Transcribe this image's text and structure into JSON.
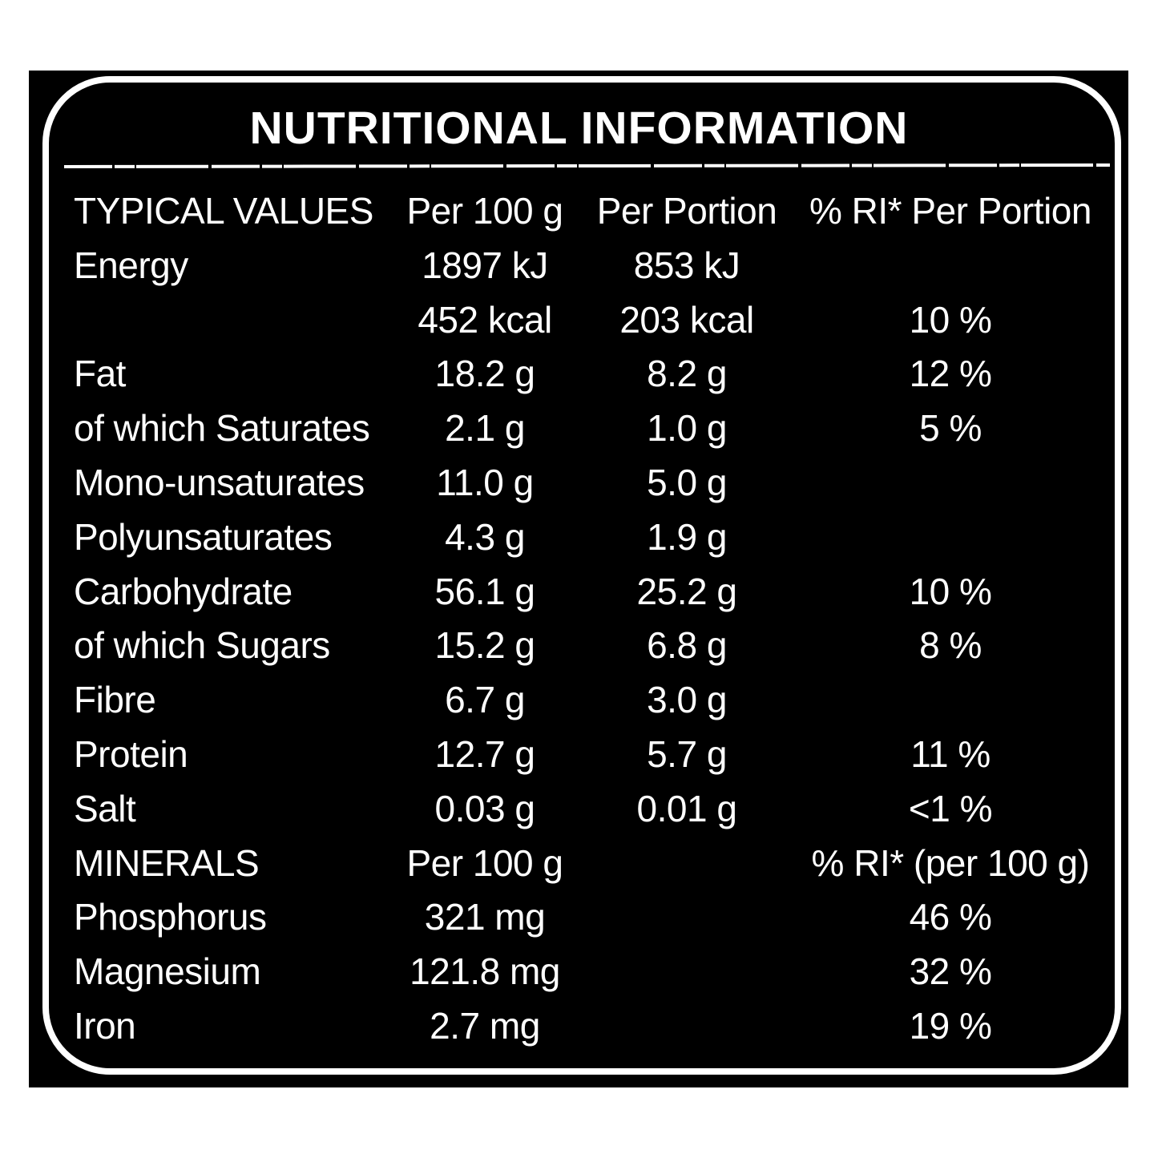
{
  "title": "NUTRITIONAL INFORMATION",
  "table": {
    "rows": [
      [
        "TYPICAL VALUES",
        "Per 100 g",
        "Per Portion",
        "% RI* Per Portion"
      ],
      [
        "Energy",
        "1897 kJ",
        "853 kJ",
        null
      ],
      [
        null,
        "452 kcal",
        "203 kcal",
        "10 %"
      ],
      [
        "Fat",
        "18.2 g",
        "8.2 g",
        "12 %"
      ],
      [
        "of which Saturates",
        "2.1 g",
        "1.0 g",
        "5 %"
      ],
      [
        "Mono-unsaturates",
        "11.0 g",
        "5.0 g",
        null
      ],
      [
        "Polyunsaturates",
        "4.3 g",
        "1.9 g",
        null
      ],
      [
        "Carbohydrate",
        "56.1 g",
        "25.2 g",
        "10 %"
      ],
      [
        "of which Sugars",
        "15.2 g",
        "6.8 g",
        "8 %"
      ],
      [
        "Fibre",
        "6.7 g",
        "3.0 g",
        null
      ],
      [
        "Protein",
        "12.7 g",
        "5.7 g",
        "11 %"
      ],
      [
        "Salt",
        "0.03 g",
        "0.01 g",
        "<1 %"
      ],
      [
        "MINERALS",
        "Per 100 g",
        null,
        "% RI* (per 100 g)"
      ],
      [
        "Phosphorus",
        "321 mg",
        null,
        "46 %"
      ],
      [
        "Magnesium",
        "121.8 mg",
        null,
        "32 %"
      ],
      [
        "Iron",
        "2.7 mg",
        null,
        "19 %"
      ]
    ]
  }
}
